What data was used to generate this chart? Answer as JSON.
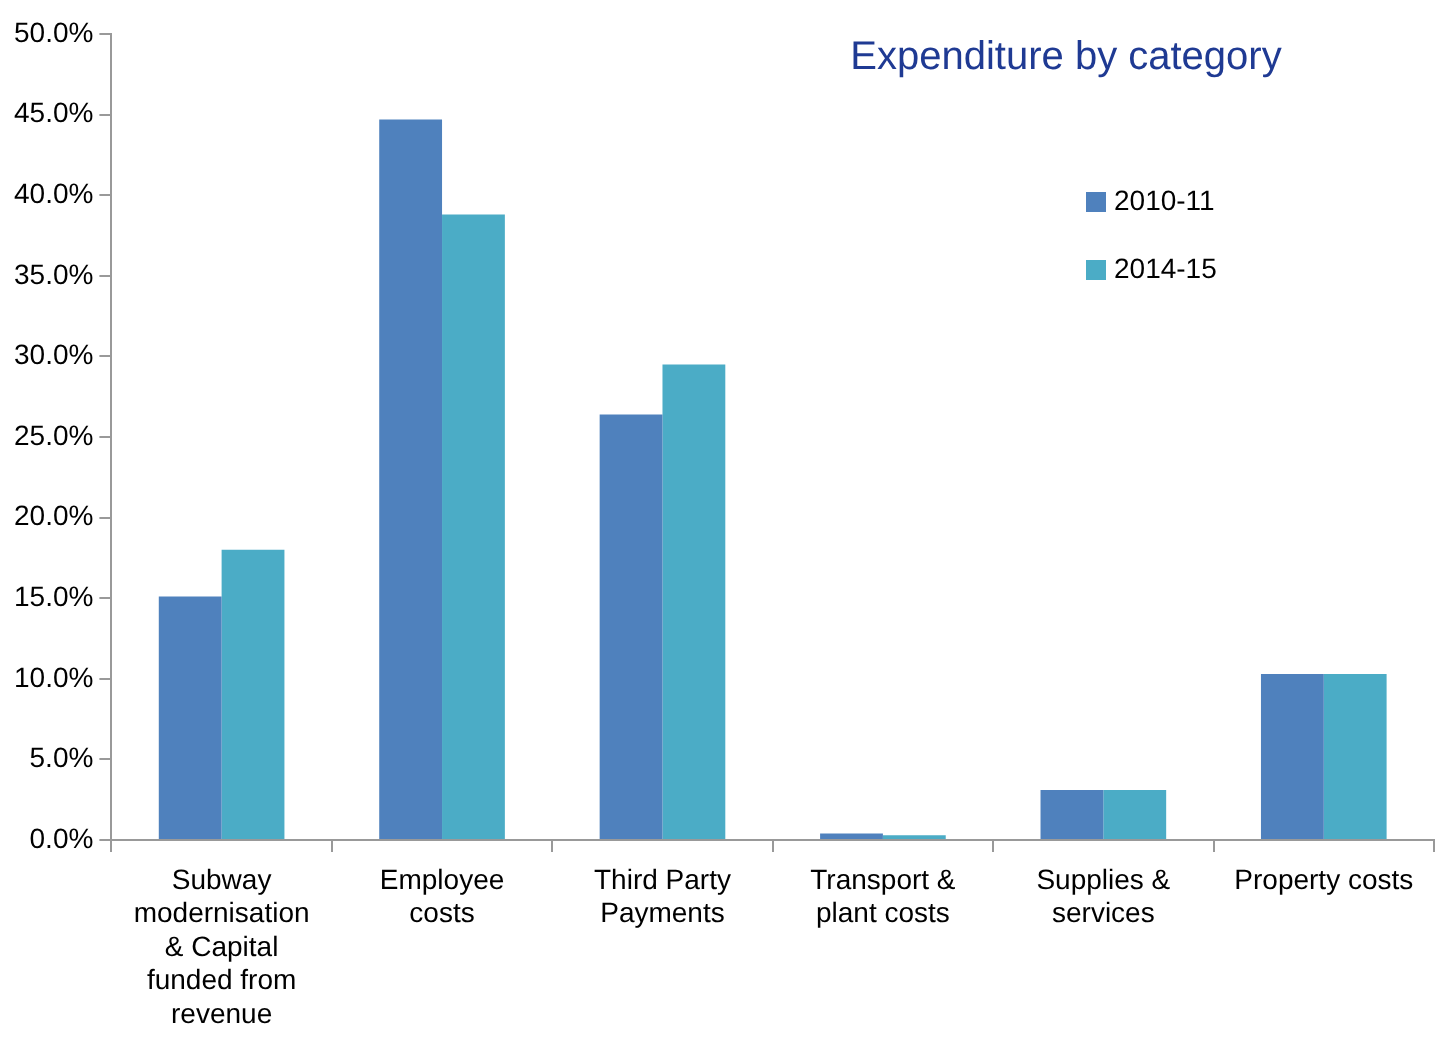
{
  "chart_data": {
    "type": "bar",
    "title": "Expenditure by category",
    "categories": [
      "Subway modernisation & Capital funded from revenue",
      "Employee costs",
      "Third Party Payments",
      "Transport & plant costs",
      "Supplies & services",
      "Property costs"
    ],
    "series": [
      {
        "name": "2010-11",
        "color": "#4f81bd",
        "values": [
          15.1,
          44.7,
          26.4,
          0.4,
          3.1,
          10.3
        ]
      },
      {
        "name": "2014-15",
        "color": "#4bacc6",
        "values": [
          18.0,
          38.8,
          29.5,
          0.3,
          3.1,
          10.3
        ]
      }
    ],
    "ylim": [
      0,
      50
    ],
    "yticks": [
      {
        "value": 0,
        "label": "0.0%"
      },
      {
        "value": 5,
        "label": "5.0%"
      },
      {
        "value": 10,
        "label": "10.0%"
      },
      {
        "value": 15,
        "label": "15.0%"
      },
      {
        "value": 20,
        "label": "20.0%"
      },
      {
        "value": 25,
        "label": "25.0%"
      },
      {
        "value": 30,
        "label": "30.0%"
      },
      {
        "value": 35,
        "label": "35.0%"
      },
      {
        "value": 40,
        "label": "40.0%"
      },
      {
        "value": 45,
        "label": "45.0%"
      },
      {
        "value": 50,
        "label": "50.0%"
      }
    ],
    "grid": false,
    "legend": "top right"
  }
}
